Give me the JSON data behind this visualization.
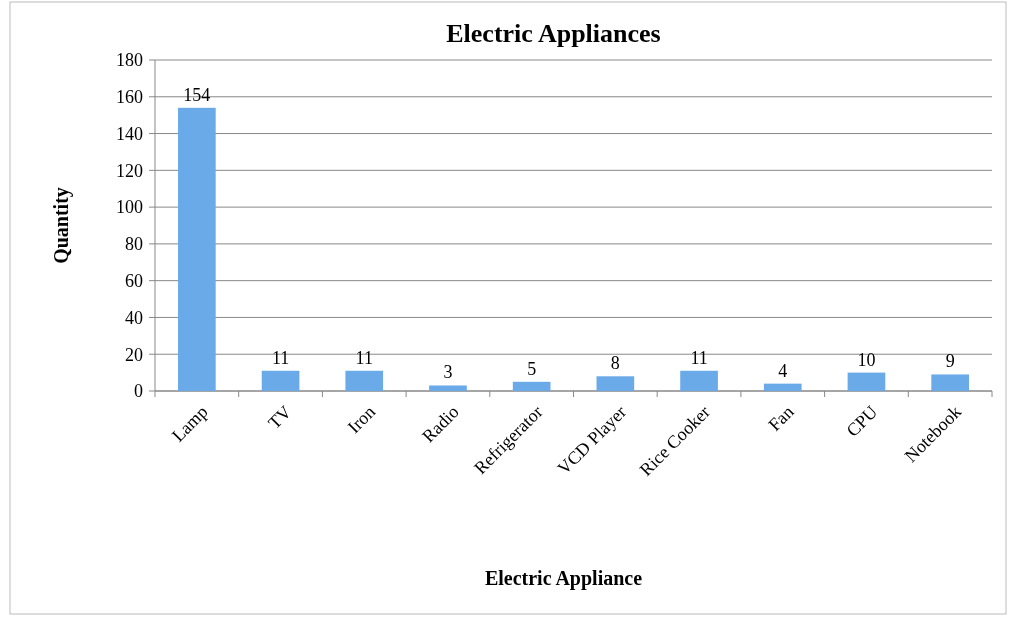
{
  "chart_data": {
    "type": "bar",
    "title": "Electric Appliances",
    "xlabel": "Electric Appliance",
    "ylabel": "Quantity",
    "categories": [
      "Lamp",
      "TV",
      "Iron",
      "Radio",
      "Refrigerator",
      "VCD Player",
      "Rice Cooker",
      "Fan",
      "CPU",
      "Notebook"
    ],
    "values": [
      154,
      11,
      11,
      3,
      5,
      8,
      11,
      4,
      10,
      9
    ],
    "color": "#6aaae8",
    "ylim": [
      0,
      180
    ],
    "yticks": [
      0,
      20,
      40,
      60,
      80,
      100,
      120,
      140,
      160,
      180
    ],
    "grid": "y",
    "data_labels": true
  }
}
